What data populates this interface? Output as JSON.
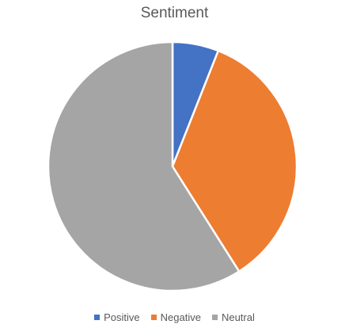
{
  "chart_data": {
    "type": "pie",
    "title": "Sentiment",
    "categories": [
      "Positive",
      "Negative",
      "Neutral"
    ],
    "values": [
      6,
      35,
      59
    ],
    "colors": [
      "#4472C4",
      "#ED7D31",
      "#A5A5A5"
    ],
    "legend_position": "bottom"
  }
}
